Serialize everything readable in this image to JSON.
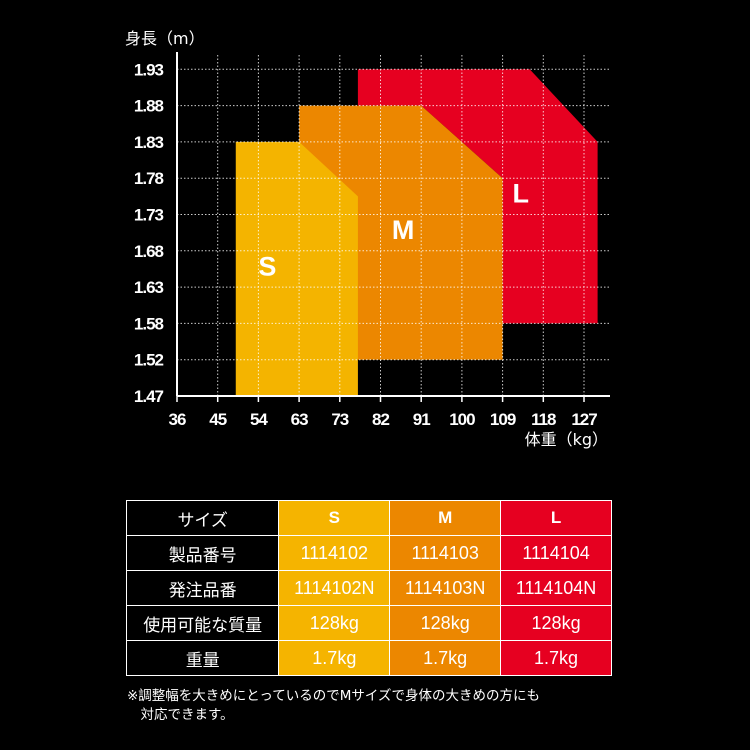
{
  "chart_data": {
    "type": "area",
    "ylabel": "身長（m）",
    "xlabel": "体重（kg）",
    "x_ticks": [
      "36",
      "45",
      "54",
      "63",
      "73",
      "82",
      "91",
      "100",
      "109",
      "118",
      "127"
    ],
    "y_ticks": [
      "1.47",
      "1.52",
      "1.58",
      "1.63",
      "1.68",
      "1.73",
      "1.78",
      "1.83",
      "1.88",
      "1.93"
    ],
    "grid": true,
    "series": [
      {
        "name": "L",
        "color": "#e60020",
        "polygon": [
          [
            77,
            1.93
          ],
          [
            115,
            1.93
          ],
          [
            130,
            1.83
          ],
          [
            130,
            1.58
          ],
          [
            109,
            1.58
          ],
          [
            109,
            1.78
          ],
          [
            91,
            1.88
          ],
          [
            77,
            1.88
          ]
        ]
      },
      {
        "name": "M",
        "color": "#ec8700",
        "polygon": [
          [
            63,
            1.88
          ],
          [
            91,
            1.88
          ],
          [
            109,
            1.78
          ],
          [
            109,
            1.52
          ],
          [
            63,
            1.52
          ]
        ]
      },
      {
        "name": "S",
        "color": "#f5b400",
        "polygon": [
          [
            49,
            1.83
          ],
          [
            63,
            1.83
          ],
          [
            77,
            1.755
          ],
          [
            77,
            1.47
          ],
          [
            49,
            1.47
          ]
        ]
      }
    ],
    "labels": [
      {
        "text": "S",
        "x": 56,
        "y": 1.66
      },
      {
        "text": "M",
        "x": 87,
        "y": 1.71
      },
      {
        "text": "L",
        "x": 113,
        "y": 1.76
      }
    ]
  },
  "table": {
    "header": [
      "サイズ",
      "S",
      "M",
      "L"
    ],
    "rows": [
      [
        "製品番号",
        "1114102",
        "1114103",
        "1114104"
      ],
      [
        "発注品番",
        "1114102N",
        "1114103N",
        "1114104N"
      ],
      [
        "使用可能な質量",
        "128kg",
        "128kg",
        "128kg"
      ],
      [
        "重量",
        "1.7kg",
        "1.7kg",
        "1.7kg"
      ]
    ]
  },
  "note": [
    "※調整幅を大きめにとっているのでMサイズで身体の大きめの方にも",
    "　対応できます。"
  ]
}
